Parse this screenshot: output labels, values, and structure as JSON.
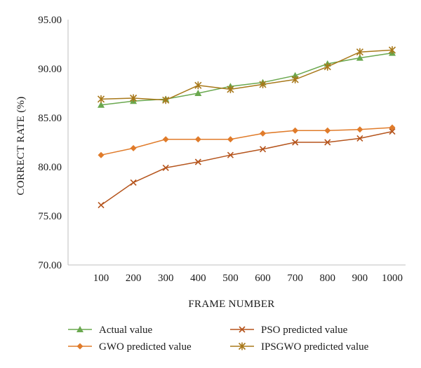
{
  "chart_data": {
    "type": "line",
    "xlabel": "FRAME NUMBER",
    "ylabel": "CORRECT RATE (%)",
    "ylim": [
      70,
      95
    ],
    "y_ticks": [
      "70.00",
      "75.00",
      "80.00",
      "85.00",
      "90.00",
      "95.00"
    ],
    "categories": [
      "100",
      "200",
      "300",
      "400",
      "500",
      "600",
      "700",
      "800",
      "900",
      "1000"
    ],
    "grid": false,
    "legend_position": "bottom",
    "series": [
      {
        "name": "Actual value",
        "color": "#6aa84f",
        "marker": "triangle",
        "values": [
          86.3,
          86.7,
          86.9,
          87.5,
          88.2,
          88.6,
          89.3,
          90.5,
          91.1,
          91.6
        ]
      },
      {
        "name": "GWO predicted value",
        "color": "#e07b2a",
        "marker": "diamond",
        "values": [
          81.2,
          81.9,
          82.8,
          82.8,
          82.8,
          83.4,
          83.7,
          83.7,
          83.8,
          84.0
        ]
      },
      {
        "name": "PSO predicted value",
        "color": "#b5541c",
        "marker": "x",
        "values": [
          76.1,
          78.4,
          79.9,
          80.5,
          81.2,
          81.8,
          82.5,
          82.5,
          82.9,
          83.6
        ]
      },
      {
        "name": "IPSGWO predicted value",
        "color": "#a8781a",
        "marker": "star",
        "values": [
          86.9,
          87.0,
          86.8,
          88.3,
          87.9,
          88.4,
          88.9,
          90.2,
          91.7,
          91.9
        ]
      }
    ]
  }
}
